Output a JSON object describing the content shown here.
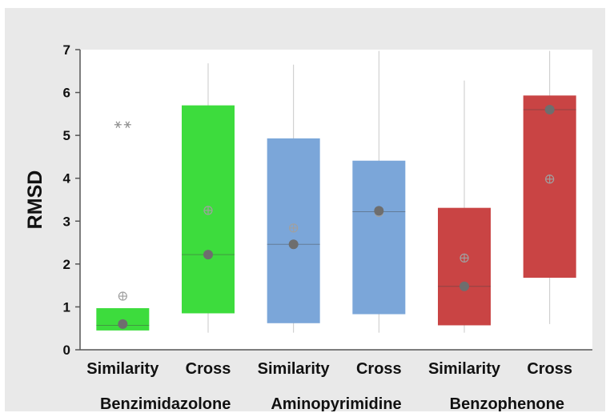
{
  "chart_data": {
    "type": "box",
    "ylabel": "RMSD",
    "ylim": [
      0,
      7
    ],
    "yticks": [
      0,
      1,
      2,
      3,
      4,
      5,
      6,
      7
    ],
    "grid": false,
    "categories": [
      "Similarity",
      "Cross",
      "Similarity",
      "Cross",
      "Similarity",
      "Cross"
    ],
    "groups": [
      {
        "name": "Benzimidazolone",
        "color": "#3ddc3d"
      },
      {
        "name": "Aminopyrimidine",
        "color": "#7ba6d9"
      },
      {
        "name": "Benzophenone",
        "color": "#c94444"
      }
    ],
    "boxes": [
      {
        "group": "Benzimidazolone",
        "category": "Similarity",
        "color": "#3ddc3d",
        "whisker_low": 0.45,
        "q1": 0.45,
        "median": 0.57,
        "q3": 0.97,
        "whisker_high": 0.97,
        "mean": 1.25,
        "median_marker": 0.6,
        "outliers": [
          5.25,
          5.25
        ]
      },
      {
        "group": "Benzimidazolone",
        "category": "Cross",
        "color": "#3ddc3d",
        "whisker_low": 0.4,
        "q1": 0.85,
        "median": 2.22,
        "q3": 5.7,
        "whisker_high": 6.68,
        "mean": 3.25,
        "median_marker": 2.22,
        "outliers": []
      },
      {
        "group": "Aminopyrimidine",
        "category": "Similarity",
        "color": "#7ba6d9",
        "whisker_low": 0.4,
        "q1": 0.62,
        "median": 2.46,
        "q3": 4.93,
        "whisker_high": 6.65,
        "mean": 2.84,
        "median_marker": 2.46,
        "outliers": []
      },
      {
        "group": "Aminopyrimidine",
        "category": "Cross",
        "color": "#7ba6d9",
        "whisker_low": 0.4,
        "q1": 0.83,
        "median": 3.22,
        "q3": 4.41,
        "whisker_high": 6.97,
        "mean": 3.2,
        "median_marker": 3.24,
        "outliers": []
      },
      {
        "group": "Benzophenone",
        "category": "Similarity",
        "color": "#c94444",
        "whisker_low": 0.4,
        "q1": 0.57,
        "median": 1.48,
        "q3": 3.31,
        "whisker_high": 6.28,
        "mean": 2.14,
        "median_marker": 1.48,
        "outliers": []
      },
      {
        "group": "Benzophenone",
        "category": "Cross",
        "color": "#c94444",
        "whisker_low": 0.6,
        "q1": 1.68,
        "median": 5.6,
        "q3": 5.93,
        "whisker_high": 6.97,
        "mean": 3.98,
        "median_marker": 5.6,
        "outliers": []
      }
    ]
  }
}
